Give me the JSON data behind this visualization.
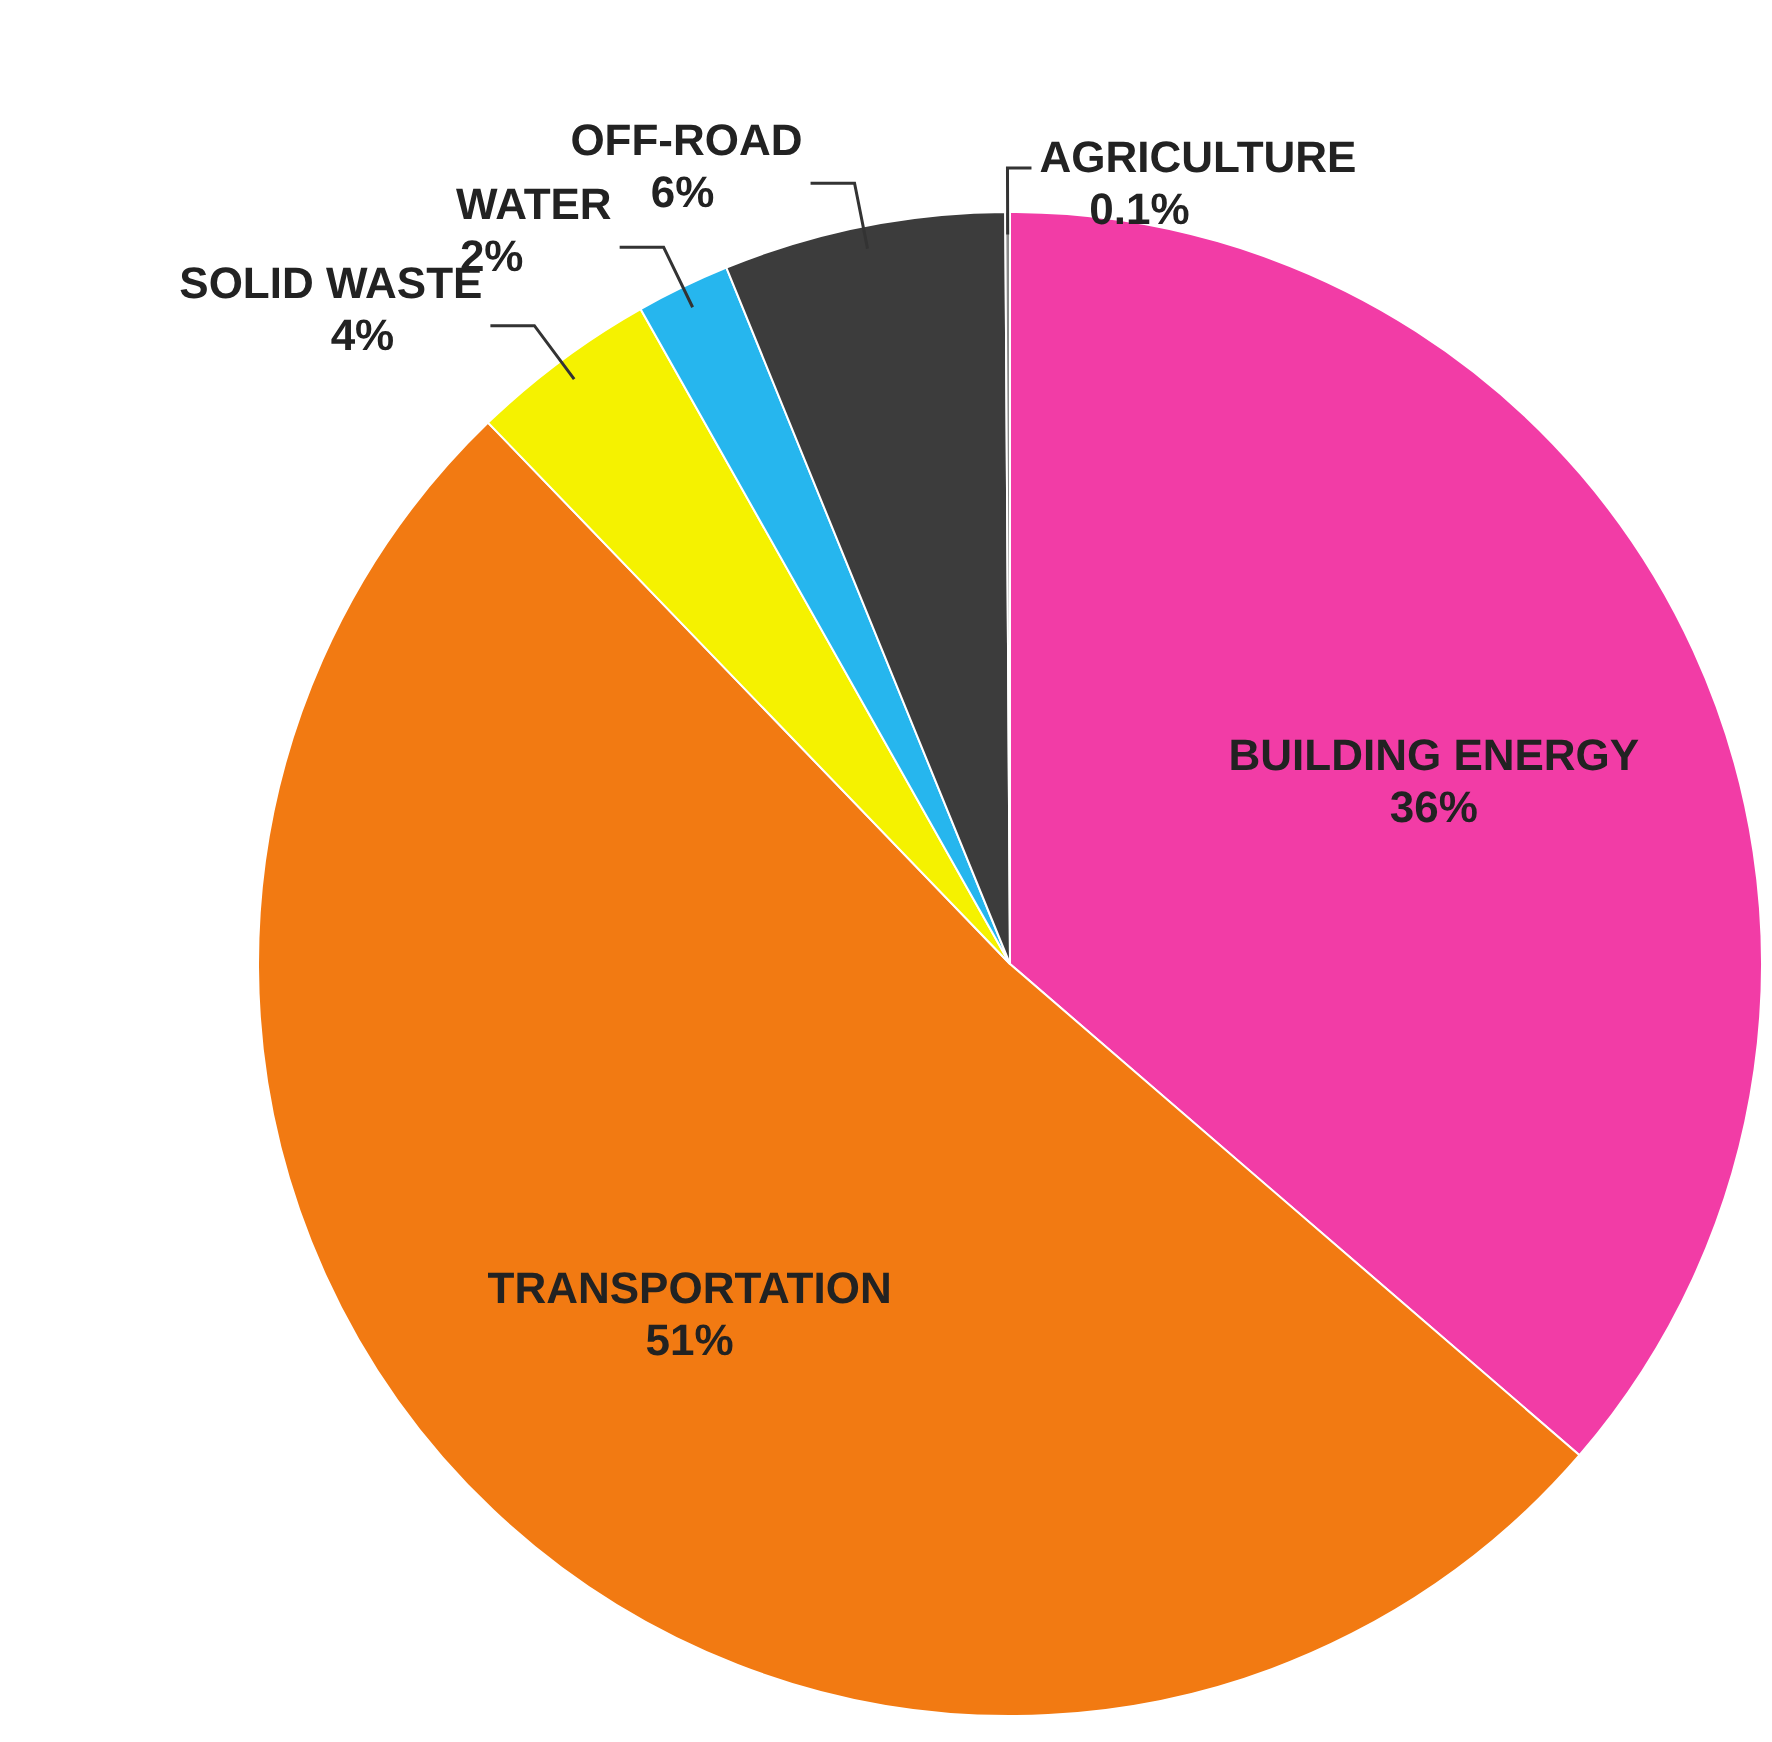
{
  "chart_data": {
    "type": "pie",
    "categories": [
      "BUILDING ENERGY",
      "TRANSPORTATION",
      "SOLID WASTE",
      "WATER",
      "OFF-ROAD",
      "AGRICULTURE"
    ],
    "values": [
      36,
      51,
      4,
      2,
      6,
      0.1
    ],
    "colors": [
      "#f23ca6",
      "#f27a12",
      "#f5f200",
      "#26b6ee",
      "#3c3c3c",
      "#8a8a8a"
    ],
    "value_labels": [
      "36%",
      "51%",
      "4%",
      "2%",
      "6%",
      "0.1%"
    ]
  }
}
